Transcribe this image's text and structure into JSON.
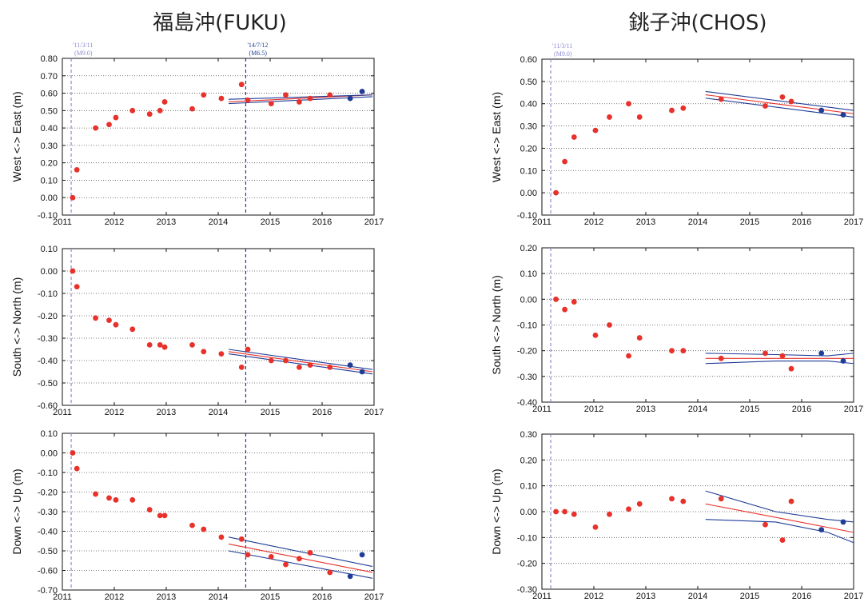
{
  "titles": {
    "left": "福島沖(FUKU)",
    "right": "銚子沖(CHOS)"
  },
  "colors": {
    "point_red": "#e8312a",
    "point_blue": "#1f3c96",
    "fit_red": "#e8312a",
    "fit_blue": "#1f3c96",
    "event_line": "#8c8cd0",
    "grid": "#555555"
  },
  "chart_data": [
    {
      "id": "fuku-ew",
      "type": "scatter",
      "station": "FUKU",
      "ylabel": "West <-> East (m)",
      "xlim": [
        2011,
        2017
      ],
      "ylim": [
        -0.1,
        0.8
      ],
      "ystep": 0.1,
      "xticks": [
        "2011",
        "2012",
        "2013",
        "2014",
        "2015",
        "2016",
        "2017"
      ],
      "yticks": [
        "0.80",
        "0.70",
        "0.60",
        "0.50",
        "0.40",
        "0.30",
        "0.20",
        "0.10",
        "0.00",
        "-0.10"
      ],
      "events": [
        {
          "x": 2011.17,
          "label1": "'11/3/11",
          "label2": "(M9.0)",
          "color": "#8c8cd0"
        },
        {
          "x": 2014.53,
          "label1": "'14/7/12",
          "label2": "(M6.5)",
          "color": "#1f3c96"
        }
      ],
      "series": [
        {
          "color": "red",
          "x": [
            2011.2,
            2011.28,
            2011.64,
            2011.9,
            2012.03,
            2012.35,
            2012.68,
            2012.88,
            2012.97,
            2013.5,
            2013.72,
            2014.06,
            2014.45,
            2014.57,
            2015.02,
            2015.3,
            2015.56,
            2015.77,
            2016.15
          ],
          "y": [
            0.0,
            0.16,
            0.4,
            0.42,
            0.46,
            0.5,
            0.48,
            0.5,
            0.55,
            0.51,
            0.59,
            0.57,
            0.65,
            0.56,
            0.54,
            0.59,
            0.55,
            0.57,
            0.59
          ]
        },
        {
          "color": "blue",
          "x": [
            2016.54,
            2016.77
          ],
          "y": [
            0.57,
            0.61
          ]
        }
      ],
      "fits": [
        {
          "color": "red",
          "x": [
            2014.2,
            2016.97
          ],
          "y": [
            0.55,
            0.59
          ]
        },
        {
          "color": "blue",
          "x": [
            2014.2,
            2016.97
          ],
          "y": [
            0.565,
            0.59
          ]
        },
        {
          "color": "blue",
          "x": [
            2014.2,
            2016.97
          ],
          "y": [
            0.54,
            0.58
          ]
        }
      ]
    },
    {
      "id": "chos-ew",
      "type": "scatter",
      "station": "CHOS",
      "ylabel": "West <-> East (m)",
      "xlim": [
        2011,
        2017
      ],
      "ylim": [
        -0.1,
        0.6
      ],
      "ystep": 0.1,
      "xticks": [
        "2011",
        "2012",
        "2013",
        "2014",
        "2015",
        "2016",
        "2017"
      ],
      "yticks": [
        "0.60",
        "0.50",
        "0.40",
        "0.30",
        "0.20",
        "0.10",
        "0.00",
        "-0.10"
      ],
      "events": [
        {
          "x": 2011.17,
          "label1": "'11/3/11",
          "label2": "(M9.0)",
          "color": "#8c8cd0"
        }
      ],
      "series": [
        {
          "color": "red",
          "x": [
            2011.27,
            2011.44,
            2011.62,
            2012.03,
            2012.3,
            2012.67,
            2012.88,
            2013.5,
            2013.72,
            2014.45,
            2015.3,
            2015.63,
            2015.8
          ],
          "y": [
            0.0,
            0.14,
            0.25,
            0.28,
            0.34,
            0.4,
            0.34,
            0.37,
            0.38,
            0.42,
            0.39,
            0.43,
            0.41
          ]
        },
        {
          "color": "blue",
          "x": [
            2016.38,
            2016.8
          ],
          "y": [
            0.37,
            0.35
          ]
        }
      ],
      "fits": [
        {
          "color": "red",
          "x": [
            2014.15,
            2017.0
          ],
          "y": [
            0.44,
            0.355
          ]
        },
        {
          "color": "blue",
          "x": [
            2014.15,
            2017.0
          ],
          "y": [
            0.455,
            0.37
          ]
        },
        {
          "color": "blue",
          "x": [
            2014.15,
            2017.0
          ],
          "y": [
            0.425,
            0.34
          ]
        }
      ]
    },
    {
      "id": "fuku-ns",
      "type": "scatter",
      "station": "FUKU",
      "ylabel": "South <-> North (m)",
      "xlim": [
        2011,
        2017
      ],
      "ylim": [
        -0.6,
        0.1
      ],
      "ystep": 0.1,
      "xticks": [
        "2011",
        "2012",
        "2013",
        "2014",
        "2015",
        "2016",
        "2017"
      ],
      "yticks": [
        "0.10",
        "0.00",
        "-0.10",
        "-0.20",
        "-0.30",
        "-0.40",
        "-0.50",
        "-0.60"
      ],
      "events": [
        {
          "x": 2011.17,
          "label1": "",
          "label2": "",
          "color": "#8c8cd0"
        },
        {
          "x": 2014.53,
          "label1": "",
          "label2": "",
          "color": "#1f3c96"
        }
      ],
      "series": [
        {
          "color": "red",
          "x": [
            2011.2,
            2011.28,
            2011.64,
            2011.9,
            2012.03,
            2012.35,
            2012.68,
            2012.88,
            2012.97,
            2013.5,
            2013.72,
            2014.06,
            2014.45,
            2014.57,
            2015.02,
            2015.3,
            2015.56,
            2015.77,
            2016.15
          ],
          "y": [
            0.0,
            -0.07,
            -0.21,
            -0.22,
            -0.24,
            -0.26,
            -0.33,
            -0.33,
            -0.34,
            -0.33,
            -0.36,
            -0.37,
            -0.43,
            -0.35,
            -0.4,
            -0.4,
            -0.43,
            -0.42,
            -0.43
          ]
        },
        {
          "color": "blue",
          "x": [
            2016.54,
            2016.77
          ],
          "y": [
            -0.42,
            -0.45
          ]
        }
      ],
      "fits": [
        {
          "color": "red",
          "x": [
            2014.2,
            2016.97
          ],
          "y": [
            -0.36,
            -0.45
          ]
        },
        {
          "color": "blue",
          "x": [
            2014.2,
            2016.97
          ],
          "y": [
            -0.35,
            -0.44
          ]
        },
        {
          "color": "blue",
          "x": [
            2014.2,
            2016.97
          ],
          "y": [
            -0.37,
            -0.46
          ]
        }
      ]
    },
    {
      "id": "chos-ns",
      "type": "scatter",
      "station": "CHOS",
      "ylabel": "South <-> North (m)",
      "xlim": [
        2011,
        2017
      ],
      "ylim": [
        -0.4,
        0.2
      ],
      "ystep": 0.1,
      "xticks": [
        "2011",
        "2012",
        "2013",
        "2014",
        "2015",
        "2016",
        "2017"
      ],
      "yticks": [
        "0.20",
        "0.10",
        "0.00",
        "-0.10",
        "-0.20",
        "-0.30",
        "-0.40"
      ],
      "events": [
        {
          "x": 2011.17,
          "label1": "",
          "label2": "",
          "color": "#8c8cd0"
        }
      ],
      "series": [
        {
          "color": "red",
          "x": [
            2011.27,
            2011.44,
            2011.62,
            2012.03,
            2012.3,
            2012.67,
            2012.88,
            2013.5,
            2013.72,
            2014.45,
            2015.3,
            2015.63,
            2015.8
          ],
          "y": [
            0.0,
            -0.04,
            -0.01,
            -0.14,
            -0.1,
            -0.22,
            -0.15,
            -0.2,
            -0.2,
            -0.23,
            -0.21,
            -0.22,
            -0.27
          ]
        },
        {
          "color": "blue",
          "x": [
            2016.38,
            2016.8
          ],
          "y": [
            -0.21,
            -0.24
          ]
        }
      ],
      "fits": [
        {
          "color": "red",
          "x": [
            2014.15,
            2017.0
          ],
          "y": [
            -0.23,
            -0.23
          ]
        },
        {
          "color": "blue",
          "x": [
            2014.15,
            2015.5,
            2016.5,
            2017.0
          ],
          "y": [
            -0.21,
            -0.215,
            -0.22,
            -0.21
          ]
        },
        {
          "color": "blue",
          "x": [
            2014.15,
            2015.5,
            2016.5,
            2017.0
          ],
          "y": [
            -0.25,
            -0.24,
            -0.24,
            -0.25
          ]
        }
      ]
    },
    {
      "id": "fuku-ud",
      "type": "scatter",
      "station": "FUKU",
      "ylabel": "Down <-> Up (m)",
      "xlim": [
        2011,
        2017
      ],
      "ylim": [
        -0.7,
        0.1
      ],
      "ystep": 0.1,
      "xticks": [
        "2011",
        "2012",
        "2013",
        "2014",
        "2015",
        "2016",
        "2017"
      ],
      "yticks": [
        "0.10",
        "0.00",
        "-0.10",
        "-0.20",
        "-0.30",
        "-0.40",
        "-0.50",
        "-0.60",
        "-0.70"
      ],
      "events": [
        {
          "x": 2011.17,
          "label1": "",
          "label2": "",
          "color": "#8c8cd0"
        },
        {
          "x": 2014.53,
          "label1": "",
          "label2": "",
          "color": "#1f3c96"
        }
      ],
      "series": [
        {
          "color": "red",
          "x": [
            2011.2,
            2011.28,
            2011.64,
            2011.9,
            2012.03,
            2012.35,
            2012.68,
            2012.88,
            2012.97,
            2013.5,
            2013.72,
            2014.06,
            2014.45,
            2014.57,
            2015.02,
            2015.3,
            2015.56,
            2015.77,
            2016.15
          ],
          "y": [
            0.0,
            -0.08,
            -0.21,
            -0.23,
            -0.24,
            -0.24,
            -0.29,
            -0.32,
            -0.32,
            -0.37,
            -0.39,
            -0.43,
            -0.44,
            -0.52,
            -0.53,
            -0.57,
            -0.54,
            -0.51,
            -0.61
          ]
        },
        {
          "color": "blue",
          "x": [
            2016.54,
            2016.77
          ],
          "y": [
            -0.63,
            -0.52
          ]
        }
      ],
      "fits": [
        {
          "color": "red",
          "x": [
            2014.2,
            2016.97
          ],
          "y": [
            -0.465,
            -0.61
          ]
        },
        {
          "color": "blue",
          "x": [
            2014.2,
            2016.97
          ],
          "y": [
            -0.43,
            -0.58
          ]
        },
        {
          "color": "blue",
          "x": [
            2014.2,
            2016.97
          ],
          "y": [
            -0.5,
            -0.64
          ]
        }
      ]
    },
    {
      "id": "chos-ud",
      "type": "scatter",
      "station": "CHOS",
      "ylabel": "Down <-> Up (m)",
      "xlim": [
        2011,
        2017
      ],
      "ylim": [
        -0.3,
        0.3
      ],
      "ystep": 0.1,
      "xticks": [
        "2011",
        "2012",
        "2013",
        "2014",
        "2015",
        "2016",
        "2017"
      ],
      "yticks": [
        "0.30",
        "0.20",
        "0.10",
        "0.00",
        "-0.10",
        "-0.20",
        "-0.30"
      ],
      "events": [
        {
          "x": 2011.17,
          "label1": "",
          "label2": "",
          "color": "#8c8cd0"
        }
      ],
      "series": [
        {
          "color": "red",
          "x": [
            2011.27,
            2011.44,
            2011.62,
            2012.03,
            2012.3,
            2012.67,
            2012.88,
            2013.5,
            2013.72,
            2014.45,
            2015.3,
            2015.63,
            2015.8
          ],
          "y": [
            0.0,
            0.0,
            -0.01,
            -0.06,
            -0.01,
            0.01,
            0.03,
            0.05,
            0.04,
            0.05,
            -0.05,
            -0.11,
            0.04
          ]
        },
        {
          "color": "blue",
          "x": [
            2016.38,
            2016.8
          ],
          "y": [
            -0.07,
            -0.04
          ]
        }
      ],
      "fits": [
        {
          "color": "red",
          "x": [
            2014.15,
            2017.0
          ],
          "y": [
            0.03,
            -0.08
          ]
        },
        {
          "color": "blue",
          "x": [
            2014.15,
            2015.5,
            2016.5,
            2017.0
          ],
          "y": [
            0.08,
            0.0,
            -0.03,
            -0.04
          ]
        },
        {
          "color": "blue",
          "x": [
            2014.15,
            2015.5,
            2016.5,
            2017.0
          ],
          "y": [
            -0.03,
            -0.04,
            -0.08,
            -0.12
          ]
        }
      ]
    }
  ]
}
